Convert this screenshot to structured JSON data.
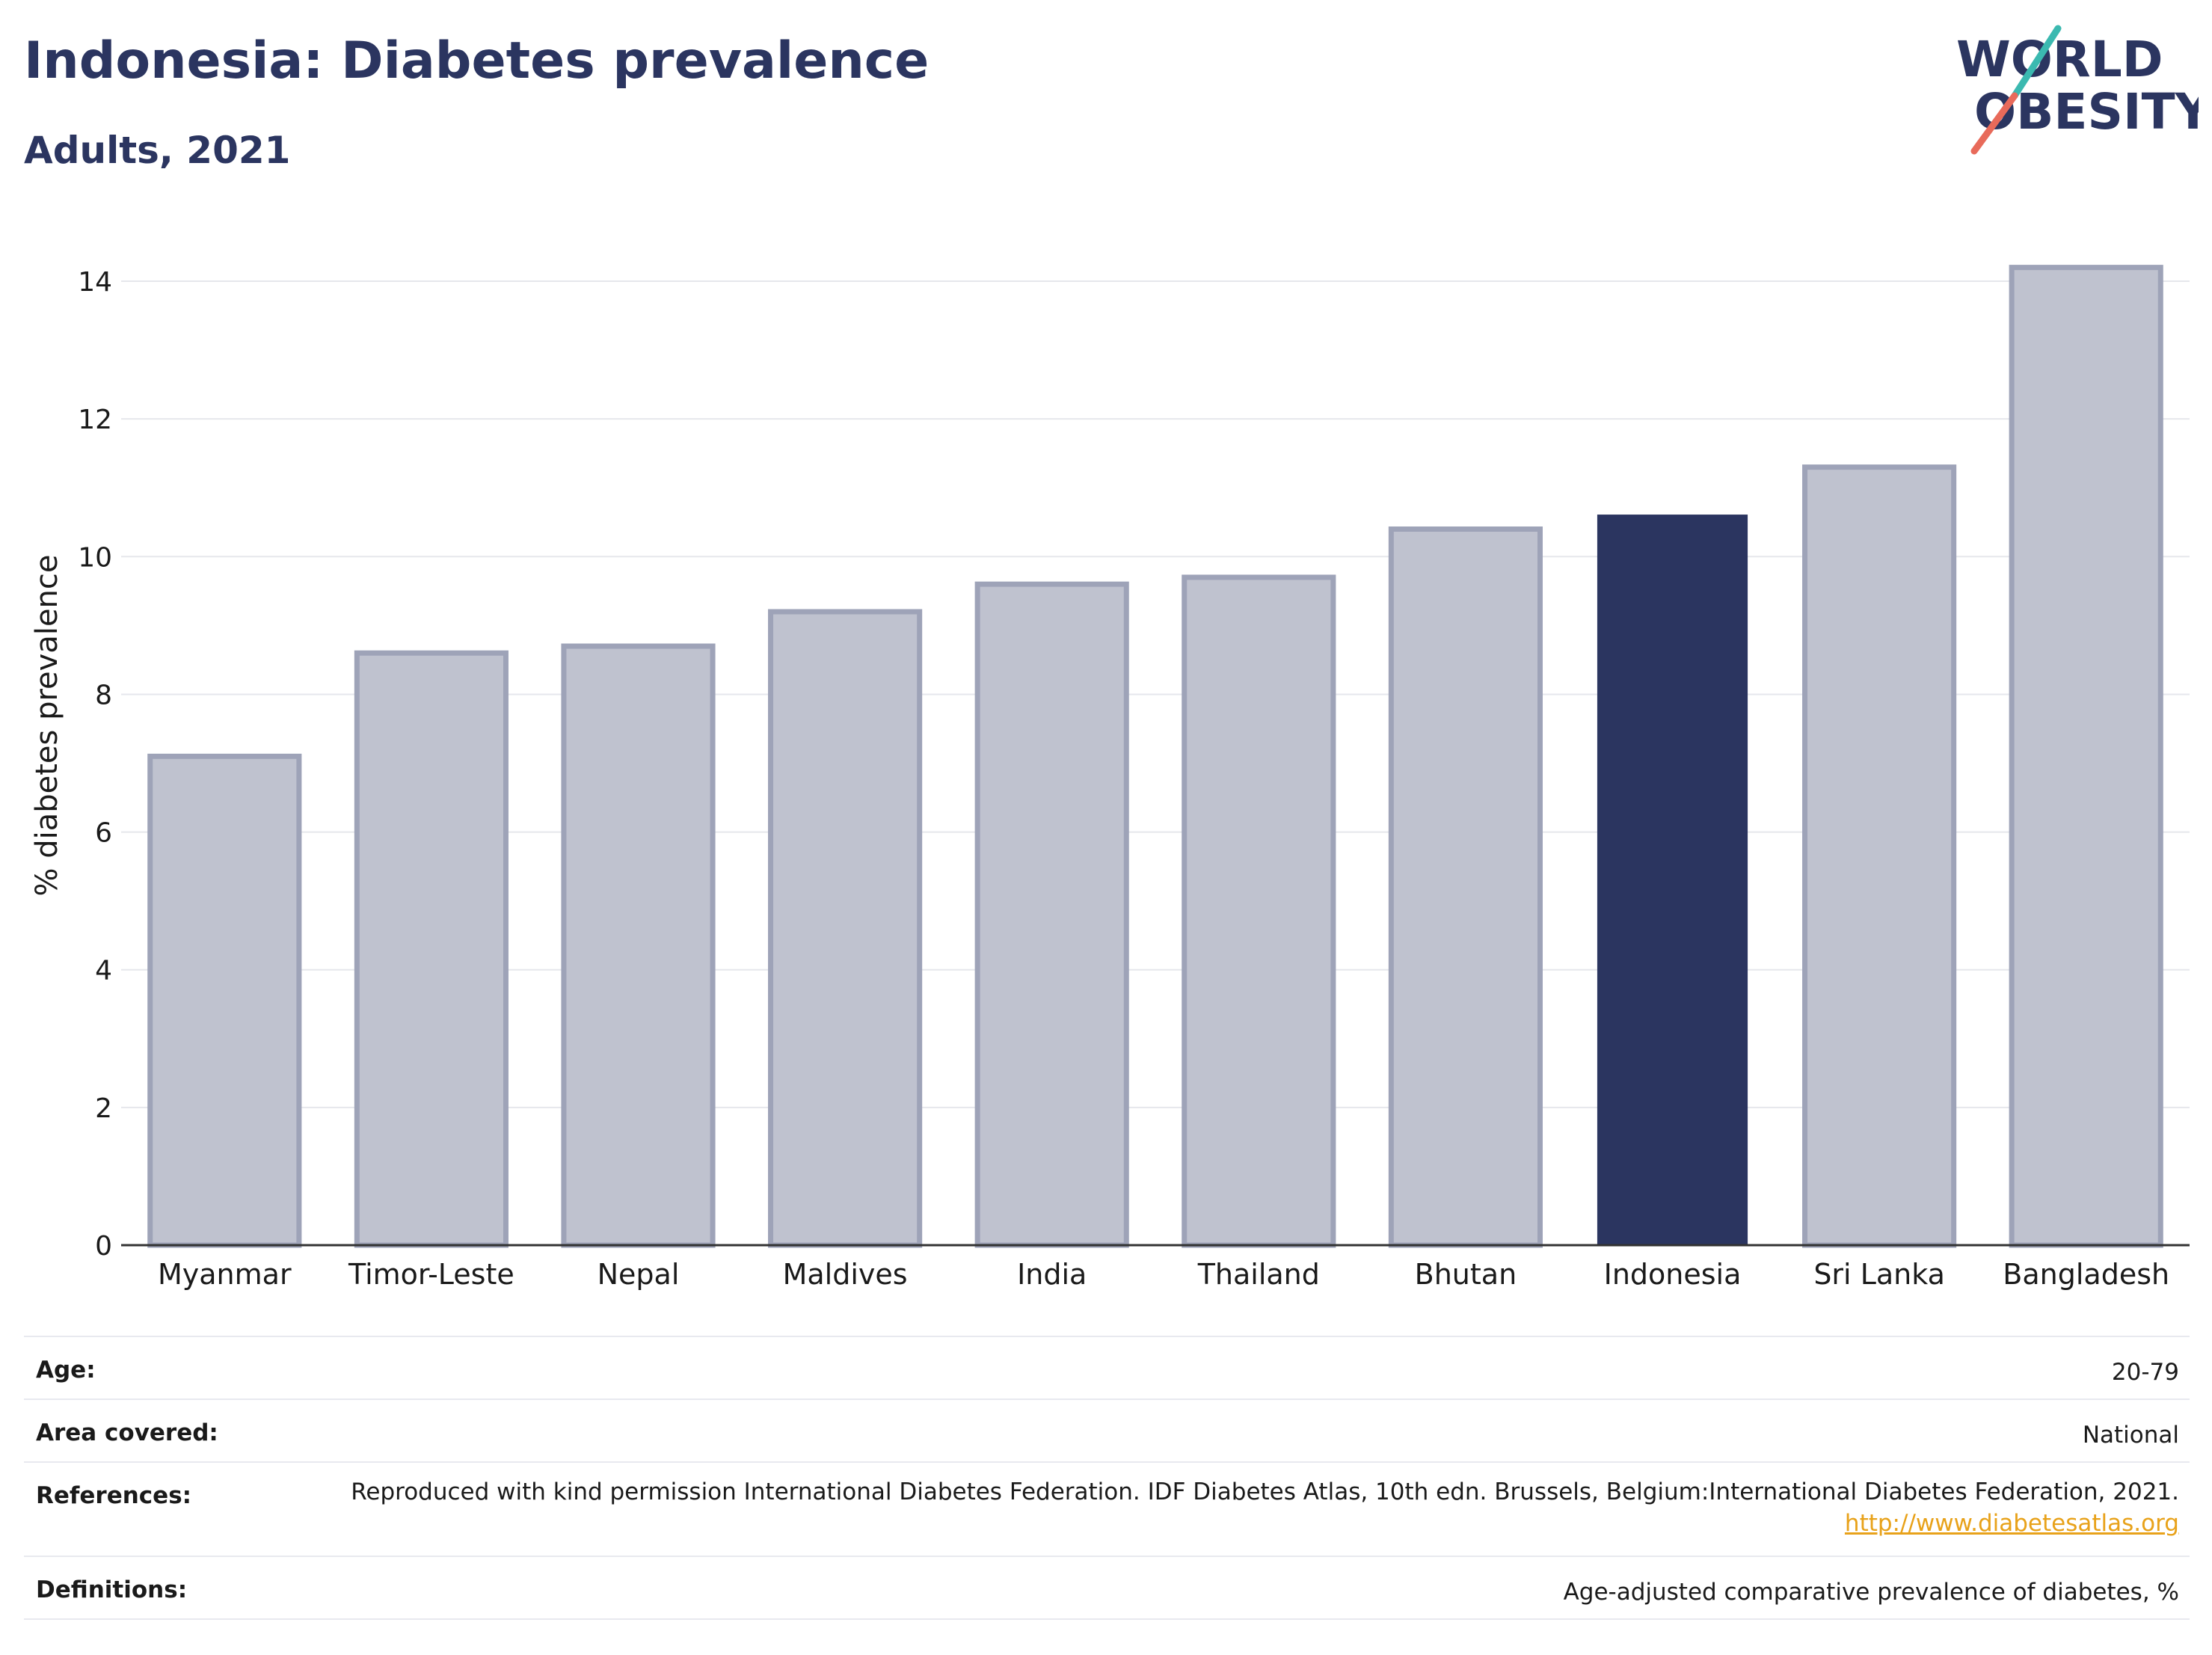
{
  "header": {
    "title": "Indonesia: Diabetes prevalence",
    "subtitle": "Adults, 2021"
  },
  "logo": {
    "line1": "WORLD",
    "line2": "OBESITY",
    "colors": {
      "text": "#2b3560",
      "slash_top": "#3bb9b0",
      "slash_bottom": "#e86a5a"
    }
  },
  "chart_data": {
    "type": "bar",
    "categories": [
      "Myanmar",
      "Timor-Leste",
      "Nepal",
      "Maldives",
      "India",
      "Thailand",
      "Bhutan",
      "Indonesia",
      "Sri Lanka",
      "Bangladesh"
    ],
    "values": [
      7.1,
      8.6,
      8.7,
      9.2,
      9.6,
      9.7,
      10.4,
      10.6,
      11.3,
      14.2
    ],
    "highlight": "Indonesia",
    "title": "",
    "xlabel": "",
    "ylabel": "% diabetes prevalence",
    "ylim": [
      0,
      14.5
    ],
    "yticks": [
      0,
      2,
      4,
      6,
      8,
      10,
      12,
      14
    ],
    "grid": true,
    "legend": "none",
    "colors": {
      "bar": "#bfc2cf",
      "bar_border": "#9ea3b8",
      "highlight": "#2b3560",
      "grid": "#e6e7ec",
      "axis": "#333333"
    }
  },
  "info": {
    "age_label": "Age:",
    "age_value": "20-79",
    "area_label": "Area covered:",
    "area_value": "National",
    "references_label": "References:",
    "references_text": "Reproduced with kind permission International Diabetes Federation.  IDF Diabetes Atlas, 10th edn. Brussels, Belgium:International Diabetes Federation, 2021.",
    "references_link": "http://www.diabetesatlas.org",
    "definitions_label": "Definitions:",
    "definitions_value": "Age-adjusted comparative prevalence of diabetes, %"
  }
}
